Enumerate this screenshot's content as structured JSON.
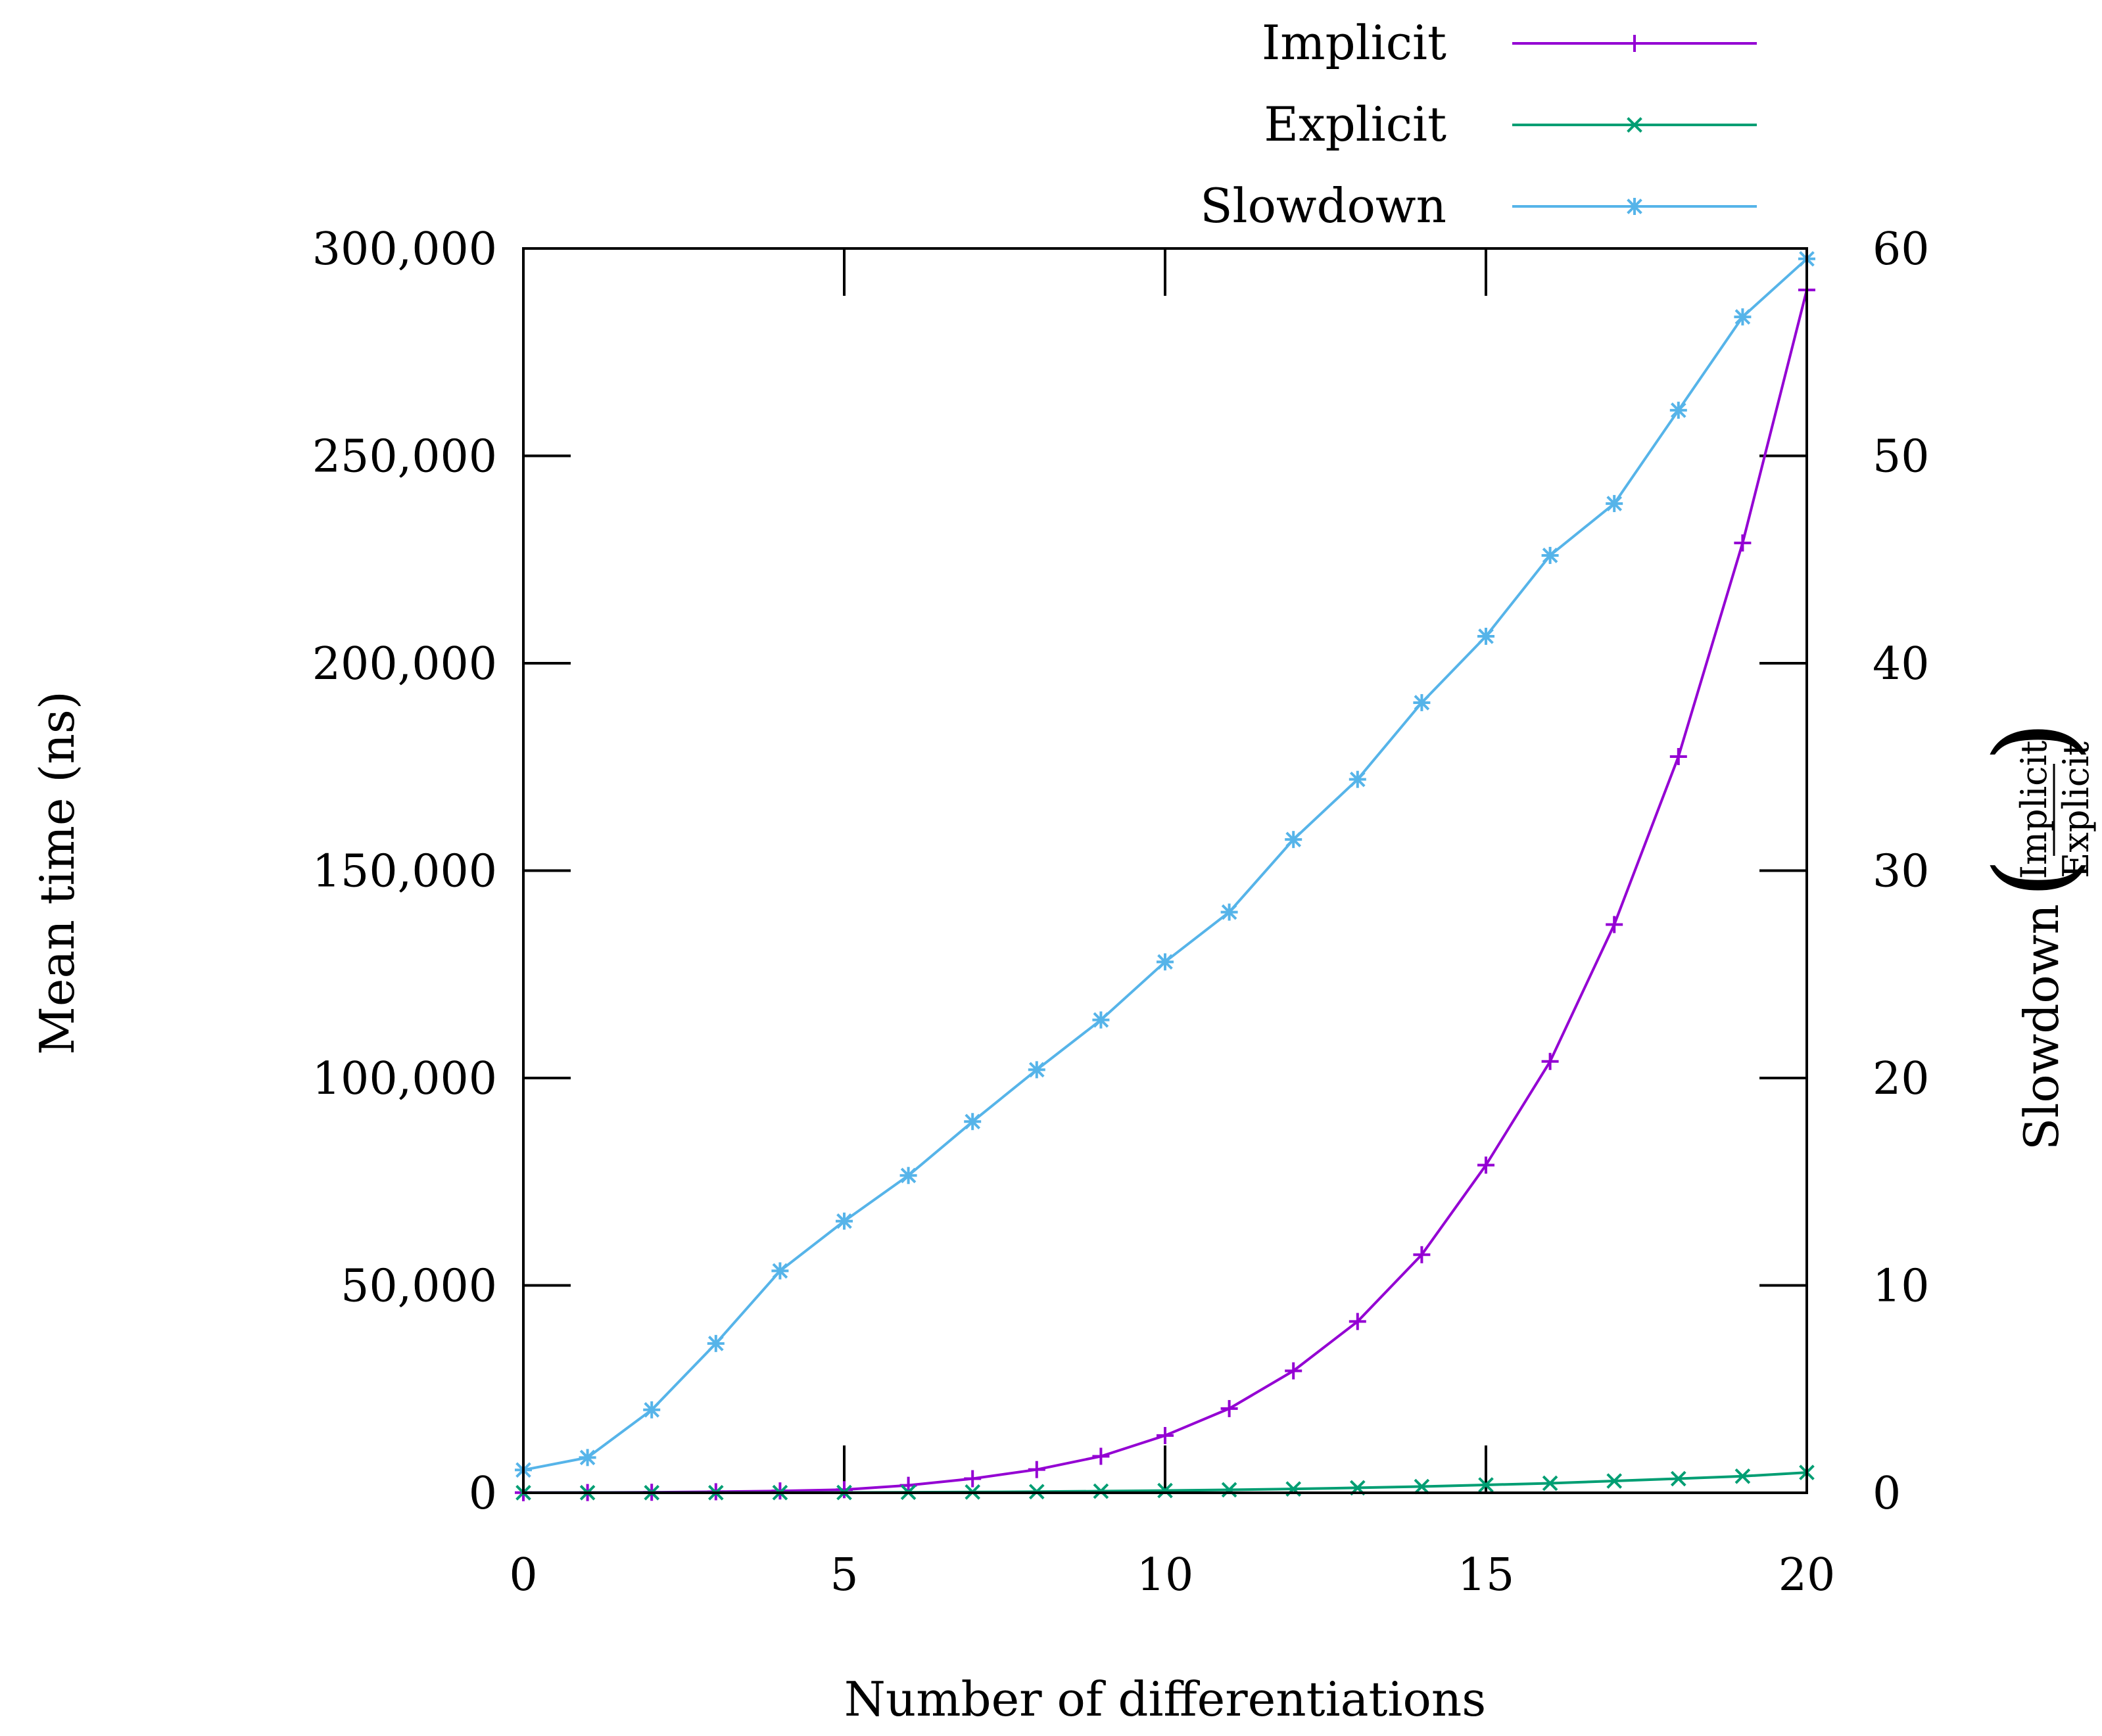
{
  "chart_data": {
    "type": "line",
    "title": "",
    "xlabel": "Number of differentiations",
    "ylabel": "Mean time (ns)",
    "y2label": "Slowdown",
    "y2label_fraction": {
      "numerator": "Implicit",
      "denominator": "Explicit"
    },
    "xlim": [
      0,
      20
    ],
    "ylim": [
      0,
      300000
    ],
    "y2lim": [
      0,
      60
    ],
    "grid": false,
    "legend_position": "top-right",
    "x_ticks": [
      0,
      5,
      10,
      15,
      20
    ],
    "x_tick_labels": [
      "0",
      "5",
      "10",
      "15",
      "20"
    ],
    "y_ticks": [
      0,
      50000,
      100000,
      150000,
      200000,
      250000,
      300000
    ],
    "y_tick_labels": [
      "0",
      "50,000",
      "100,000",
      "150,000",
      "200,000",
      "250,000",
      "300,000"
    ],
    "y2_ticks": [
      0,
      10,
      20,
      30,
      40,
      50,
      60
    ],
    "y2_tick_labels": [
      "0",
      "10",
      "20",
      "30",
      "40",
      "50",
      "60"
    ],
    "x": [
      0,
      1,
      2,
      3,
      4,
      5,
      6,
      7,
      8,
      9,
      10,
      11,
      12,
      13,
      14,
      15,
      16,
      17,
      18,
      19,
      20
    ],
    "series": [
      {
        "name": "Implicit",
        "axis": "left",
        "color": "#9400D3",
        "marker": "plus",
        "values": [
          30,
          60,
          120,
          250,
          450,
          750,
          1800,
          3400,
          5600,
          8800,
          13800,
          20300,
          29400,
          41300,
          57400,
          79000,
          104000,
          137000,
          177500,
          229000,
          290000
        ]
      },
      {
        "name": "Explicit",
        "axis": "left",
        "color": "#009E73",
        "marker": "cross",
        "values": [
          20,
          30,
          30,
          30,
          40,
          60,
          120,
          190,
          270,
          390,
          540,
          720,
          930,
          1200,
          1500,
          1900,
          2300,
          2850,
          3400,
          4000,
          4900
        ]
      },
      {
        "name": "Slowdown",
        "axis": "right",
        "color": "#56B4E9",
        "marker": "star",
        "values": [
          1.1,
          1.7,
          4.0,
          7.2,
          10.7,
          13.1,
          15.3,
          17.9,
          20.4,
          22.8,
          25.6,
          28.0,
          31.5,
          34.4,
          38.1,
          41.3,
          45.2,
          47.7,
          52.2,
          56.7,
          59.5
        ]
      }
    ]
  }
}
